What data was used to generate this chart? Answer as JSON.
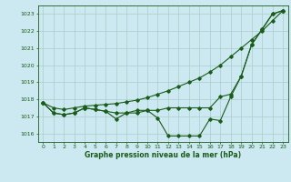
{
  "title": "Graphe pression niveau de la mer (hPa)",
  "background_color": "#cce8f0",
  "grid_color": "#aacccc",
  "line_color": "#1a5c1a",
  "xlim": [
    -0.5,
    23.5
  ],
  "ylim": [
    1015.5,
    1023.5
  ],
  "yticks": [
    1016,
    1017,
    1018,
    1019,
    1020,
    1021,
    1022,
    1023
  ],
  "xticks": [
    0,
    1,
    2,
    3,
    4,
    5,
    6,
    7,
    8,
    9,
    10,
    11,
    12,
    13,
    14,
    15,
    16,
    17,
    18,
    19,
    20,
    21,
    22,
    23
  ],
  "series1": [
    1017.8,
    1017.2,
    1017.1,
    1017.2,
    1017.5,
    1017.4,
    1017.3,
    1016.85,
    1017.2,
    1017.2,
    1017.35,
    1016.9,
    1015.85,
    1015.85,
    1015.85,
    1015.85,
    1016.85,
    1016.75,
    1018.15,
    1019.35,
    1021.2,
    1022.1,
    1023.0,
    1023.2
  ],
  "series2": [
    1017.8,
    1017.5,
    1017.4,
    1017.5,
    1017.6,
    1017.65,
    1017.7,
    1017.75,
    1017.85,
    1017.95,
    1018.1,
    1018.3,
    1018.5,
    1018.75,
    1019.0,
    1019.25,
    1019.6,
    1020.0,
    1020.5,
    1021.0,
    1021.5,
    1022.0,
    1022.6,
    1023.2
  ],
  "series3": [
    1017.8,
    1017.2,
    1017.1,
    1017.2,
    1017.5,
    1017.4,
    1017.3,
    1017.2,
    1017.2,
    1017.35,
    1017.35,
    1017.35,
    1017.5,
    1017.5,
    1017.5,
    1017.5,
    1017.5,
    1018.15,
    1018.3,
    1019.35,
    1021.2,
    1022.1,
    1023.0,
    1023.2
  ]
}
